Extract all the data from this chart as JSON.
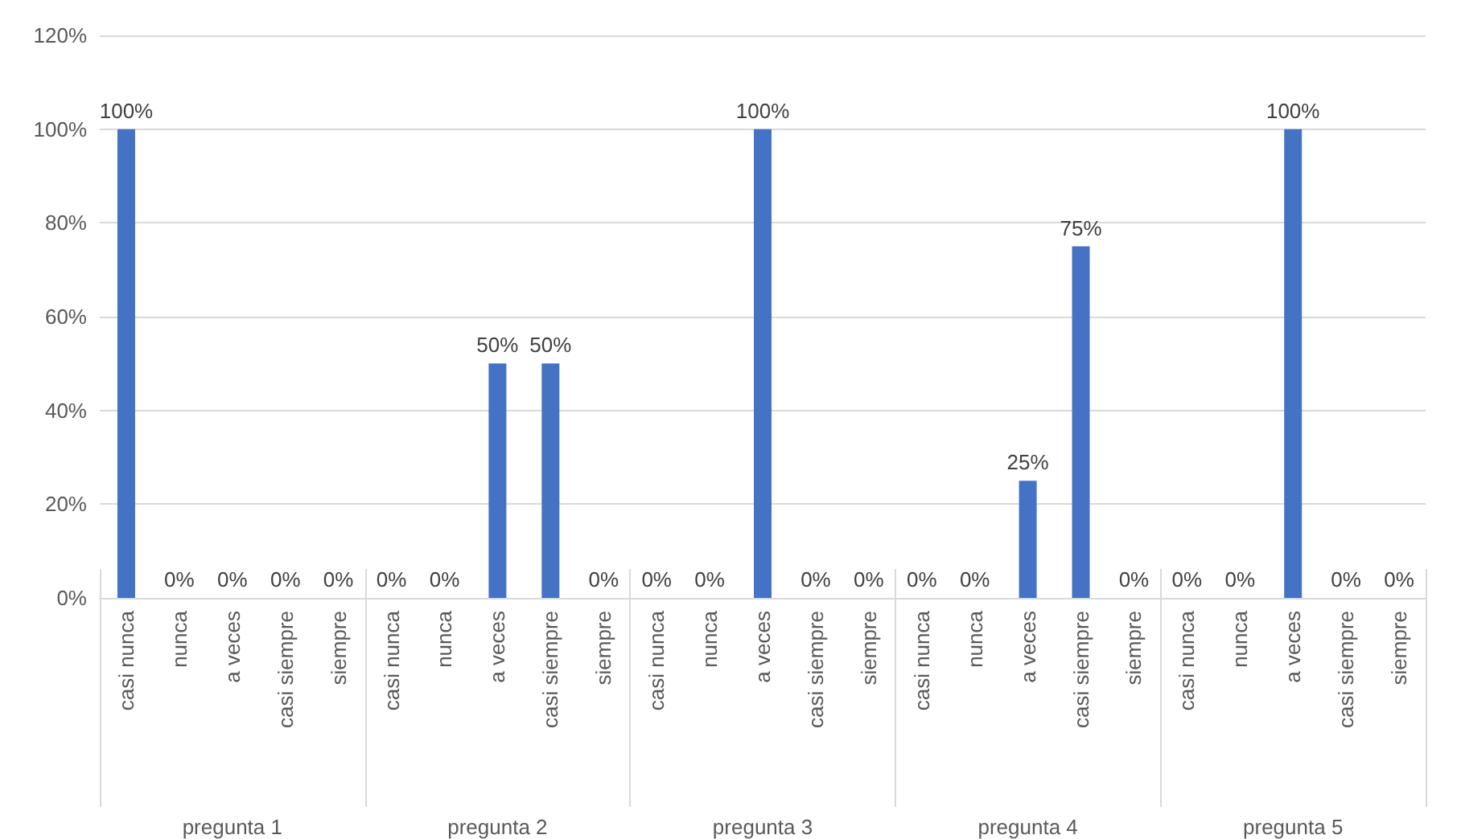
{
  "chart_data": {
    "type": "bar",
    "categories": [
      "casi nunca",
      "nunca",
      "a veces",
      "casi siempre",
      "siempre",
      "casi nunca",
      "nunca",
      "a veces",
      "casi siempre",
      "siempre",
      "casi nunca",
      "nunca",
      "a veces",
      "casi siempre",
      "siempre",
      "casi nunca",
      "nunca",
      "a veces",
      "casi siempre",
      "siempre",
      "casi nunca",
      "nunca",
      "a veces",
      "casi siempre",
      "siempre"
    ],
    "values": [
      100,
      0,
      0,
      0,
      0,
      0,
      0,
      50,
      50,
      0,
      0,
      0,
      100,
      0,
      0,
      0,
      0,
      25,
      75,
      0,
      0,
      0,
      100,
      0,
      0
    ],
    "value_labels": [
      "100%",
      "0%",
      "0%",
      "0%",
      "0%",
      "0%",
      "0%",
      "50%",
      "50%",
      "0%",
      "0%",
      "0%",
      "100%",
      "0%",
      "0%",
      "0%",
      "0%",
      "25%",
      "75%",
      "0%",
      "0%",
      "0%",
      "100%",
      "0%",
      "0%"
    ],
    "color": "#4472c4",
    "annotations": [
      "pregunta 1",
      "pregunta 2",
      "pregunta 3",
      "pregunta 4",
      "pregunta 5"
    ],
    "ylim": [
      0,
      120
    ],
    "yticks": [
      {
        "value": 0,
        "label": "0%"
      },
      {
        "value": 20,
        "label": "20%"
      },
      {
        "value": 40,
        "label": "40%"
      },
      {
        "value": 60,
        "label": "60%"
      },
      {
        "value": 80,
        "label": "80%"
      },
      {
        "value": 100,
        "label": "100%"
      },
      {
        "value": 120,
        "label": "120%"
      }
    ],
    "grid": "y"
  }
}
